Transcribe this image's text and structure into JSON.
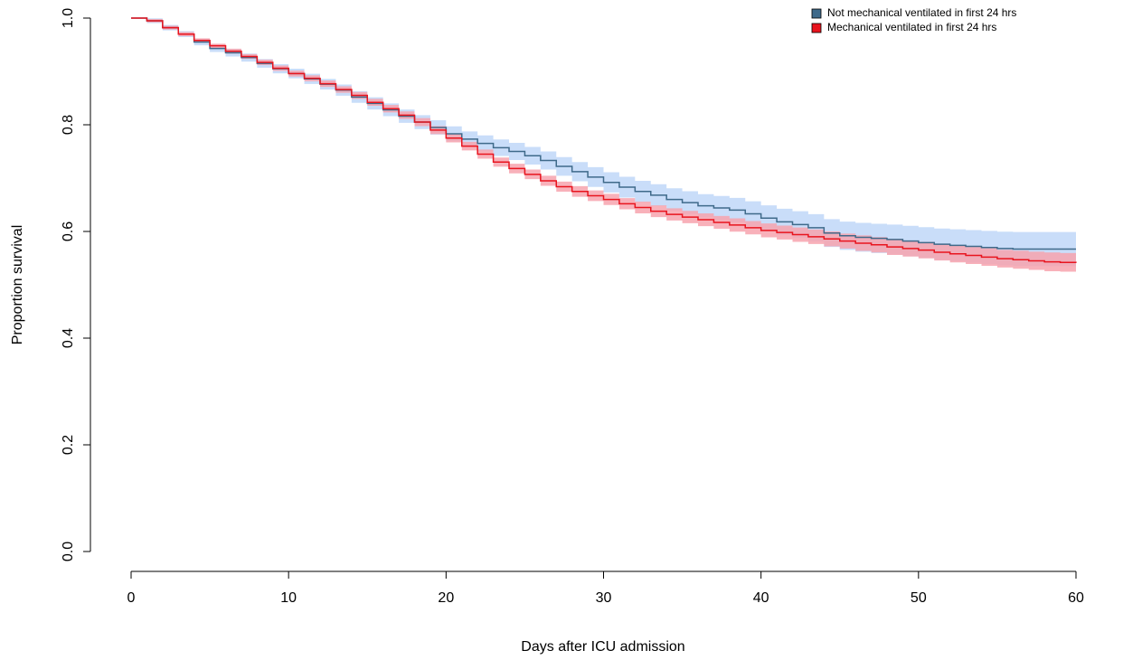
{
  "chart_data": {
    "type": "survival",
    "xlabel": "Days after ICU admission",
    "ylabel": "Proportion survival",
    "xlim": [
      0,
      60
    ],
    "ylim": [
      0,
      1
    ],
    "xticks": [
      0,
      10,
      20,
      30,
      40,
      50,
      60
    ],
    "yticks": [
      {
        "value": 0,
        "label": "0.0"
      },
      0.2,
      0.4,
      0.6,
      0.8,
      {
        "value": 1,
        "label": "1.0"
      }
    ],
    "legend": "top-right",
    "x": [
      0,
      1,
      2,
      3,
      4,
      5,
      6,
      7,
      8,
      9,
      10,
      11,
      12,
      13,
      14,
      15,
      16,
      17,
      18,
      19,
      20,
      21,
      22,
      23,
      24,
      25,
      26,
      27,
      28,
      29,
      30,
      31,
      32,
      33,
      34,
      35,
      36,
      37,
      38,
      39,
      40,
      41,
      42,
      43,
      44,
      45,
      46,
      47,
      48,
      49,
      50,
      51,
      52,
      53,
      54,
      55,
      56,
      57,
      58,
      59,
      60
    ],
    "series": [
      {
        "name": "Not mechanical ventilated in first 24 hrs",
        "color": "#3f6a8a",
        "band_color": "#c9ddf9",
        "values": [
          1.0,
          0.995,
          0.982,
          0.97,
          0.955,
          0.943,
          0.935,
          0.926,
          0.915,
          0.905,
          0.896,
          0.886,
          0.876,
          0.865,
          0.852,
          0.84,
          0.828,
          0.816,
          0.805,
          0.795,
          0.783,
          0.773,
          0.765,
          0.757,
          0.75,
          0.742,
          0.733,
          0.722,
          0.712,
          0.702,
          0.692,
          0.683,
          0.675,
          0.668,
          0.66,
          0.654,
          0.648,
          0.644,
          0.64,
          0.633,
          0.625,
          0.618,
          0.613,
          0.607,
          0.597,
          0.592,
          0.589,
          0.587,
          0.585,
          0.582,
          0.579,
          0.576,
          0.574,
          0.572,
          0.57,
          0.568,
          0.567,
          0.567,
          0.567,
          0.567,
          0.567
        ],
        "lower": [
          1.0,
          0.9905,
          0.977,
          0.9645,
          0.949,
          0.9365,
          0.928,
          0.9185,
          0.907,
          0.8965,
          0.887,
          0.8765,
          0.866,
          0.8545,
          0.841,
          0.8285,
          0.816,
          0.8035,
          0.792,
          0.7815,
          0.769,
          0.7585,
          0.75,
          0.7415,
          0.734,
          0.7255,
          0.716,
          0.7045,
          0.694,
          0.6835,
          0.673,
          0.6635,
          0.655,
          0.6475,
          0.639,
          0.6325,
          0.626,
          0.6215,
          0.617,
          0.6095,
          0.601,
          0.5935,
          0.588,
          0.5815,
          0.571,
          0.5655,
          0.562,
          0.5595,
          0.557,
          0.5535,
          0.55,
          0.5465,
          0.544,
          0.5415,
          0.539,
          0.5365,
          0.535,
          0.535,
          0.535,
          0.535,
          0.535
        ],
        "upper": [
          1.0,
          0.9995,
          0.987,
          0.9755,
          0.961,
          0.9495,
          0.942,
          0.9335,
          0.923,
          0.9135,
          0.905,
          0.8955,
          0.886,
          0.8755,
          0.863,
          0.8515,
          0.84,
          0.8285,
          0.818,
          0.8085,
          0.797,
          0.7875,
          0.78,
          0.7725,
          0.766,
          0.7585,
          0.75,
          0.7395,
          0.73,
          0.7205,
          0.711,
          0.7025,
          0.695,
          0.6885,
          0.681,
          0.6755,
          0.67,
          0.6665,
          0.663,
          0.6565,
          0.649,
          0.6425,
          0.638,
          0.6325,
          0.623,
          0.6185,
          0.616,
          0.6145,
          0.613,
          0.6105,
          0.608,
          0.6055,
          0.604,
          0.6025,
          0.601,
          0.5995,
          0.599,
          0.599,
          0.599,
          0.599,
          0.599
        ]
      },
      {
        "name": "Mechanical ventilated in first 24 hrs",
        "color": "#e8141e",
        "band_color": "#f7a3ae",
        "values": [
          1.0,
          0.995,
          0.982,
          0.97,
          0.958,
          0.948,
          0.938,
          0.928,
          0.917,
          0.906,
          0.896,
          0.887,
          0.877,
          0.866,
          0.855,
          0.842,
          0.83,
          0.818,
          0.805,
          0.79,
          0.775,
          0.76,
          0.745,
          0.73,
          0.718,
          0.707,
          0.695,
          0.684,
          0.675,
          0.667,
          0.66,
          0.652,
          0.645,
          0.638,
          0.632,
          0.627,
          0.622,
          0.617,
          0.612,
          0.607,
          0.602,
          0.598,
          0.594,
          0.59,
          0.586,
          0.582,
          0.578,
          0.575,
          0.571,
          0.568,
          0.565,
          0.561,
          0.558,
          0.555,
          0.552,
          0.549,
          0.547,
          0.545,
          0.543,
          0.542,
          0.541
        ],
        "lower": [
          1.0,
          0.992,
          0.9785,
          0.966,
          0.954,
          0.944,
          0.9335,
          0.9235,
          0.912,
          0.901,
          0.8905,
          0.8815,
          0.871,
          0.86,
          0.8485,
          0.8355,
          0.823,
          0.811,
          0.7975,
          0.7825,
          0.767,
          0.752,
          0.7365,
          0.7215,
          0.709,
          0.698,
          0.6855,
          0.6745,
          0.665,
          0.657,
          0.6495,
          0.6415,
          0.634,
          0.627,
          0.6205,
          0.6155,
          0.61,
          0.605,
          0.5995,
          0.5945,
          0.589,
          0.585,
          0.5805,
          0.5765,
          0.572,
          0.568,
          0.5635,
          0.5605,
          0.556,
          0.553,
          0.5495,
          0.5455,
          0.542,
          0.539,
          0.5355,
          0.5325,
          0.53,
          0.528,
          0.5255,
          0.5245,
          0.523
        ],
        "upper": [
          1.0,
          0.998,
          0.9855,
          0.974,
          0.962,
          0.952,
          0.9425,
          0.9325,
          0.922,
          0.911,
          0.9015,
          0.8925,
          0.883,
          0.872,
          0.8615,
          0.8485,
          0.837,
          0.825,
          0.8125,
          0.7975,
          0.783,
          0.768,
          0.7535,
          0.7385,
          0.727,
          0.716,
          0.7045,
          0.6935,
          0.685,
          0.677,
          0.6705,
          0.6625,
          0.656,
          0.649,
          0.6435,
          0.6385,
          0.634,
          0.629,
          0.6245,
          0.6195,
          0.615,
          0.611,
          0.6075,
          0.6035,
          0.6,
          0.596,
          0.5925,
          0.5895,
          0.586,
          0.583,
          0.5805,
          0.5765,
          0.574,
          0.571,
          0.5685,
          0.5655,
          0.564,
          0.562,
          0.5605,
          0.5595,
          0.559
        ]
      }
    ]
  }
}
